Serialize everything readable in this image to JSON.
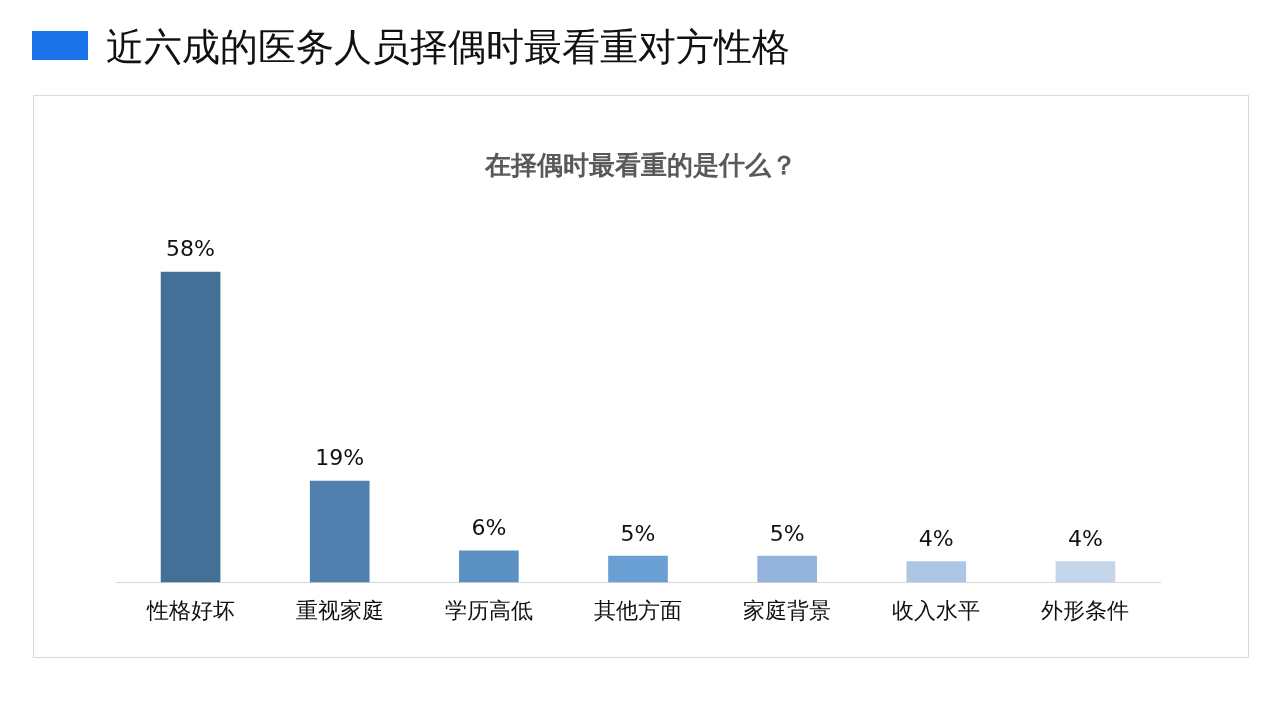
{
  "chart_data": {
    "type": "bar",
    "title": "近六成的医务人员择偶时最看重对方性格",
    "subtitle": "在择偶时最看重的是什么？",
    "categories": [
      "性格好坏",
      "重视家庭",
      "学历高低",
      "其他方面",
      "家庭背景",
      "收入水平",
      "外形条件"
    ],
    "values": [
      58,
      19,
      6,
      5,
      5,
      4,
      4
    ],
    "value_labels": [
      "58%",
      "19%",
      "6%",
      "5%",
      "5%",
      "4%",
      "4%"
    ],
    "colors": [
      "#446f97",
      "#4f80ae",
      "#5b90c2",
      "#6a9fd3",
      "#93b3dc",
      "#adc6e5",
      "#c6d6ea"
    ],
    "grid": false,
    "legend": false
  }
}
